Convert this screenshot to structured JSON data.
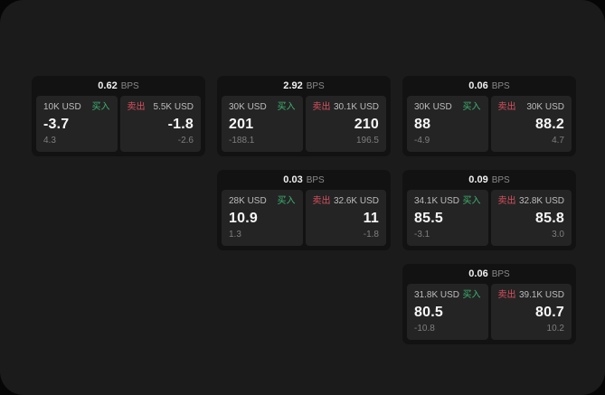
{
  "colors": {
    "outer_background": "#060606",
    "screen_background": "#1b1b1c",
    "card_background": "#121213",
    "tile_background": "#242425",
    "buy_green": "#3cb46e",
    "sell_red": "#d8505c",
    "primary_text": "#f7f7f7",
    "muted_text": "#7e7e7e"
  },
  "labels": {
    "bps_unit": "BPS",
    "buy": "买入",
    "sell": "卖出"
  },
  "cards": [
    {
      "bps": "0.62",
      "buy": {
        "size": "10K USD",
        "price": "-3.7",
        "delta": "4.3"
      },
      "sell": {
        "size": "5.5K USD",
        "price": "-1.8",
        "delta": "-2.6"
      }
    },
    {
      "bps": "2.92",
      "buy": {
        "size": "30K USD",
        "price": "201",
        "delta": "-188.1"
      },
      "sell": {
        "size": "30.1K USD",
        "price": "210",
        "delta": "196.5"
      }
    },
    {
      "bps": "0.06",
      "buy": {
        "size": "30K USD",
        "price": "88",
        "delta": "-4.9"
      },
      "sell": {
        "size": "30K USD",
        "price": "88.2",
        "delta": "4.7"
      }
    },
    {
      "bps": "0.03",
      "buy": {
        "size": "28K USD",
        "price": "10.9",
        "delta": "1.3"
      },
      "sell": {
        "size": "32.6K USD",
        "price": "11",
        "delta": "-1.8"
      }
    },
    {
      "bps": "0.09",
      "buy": {
        "size": "34.1K USD",
        "price": "85.5",
        "delta": "-3.1"
      },
      "sell": {
        "size": "32.8K USD",
        "price": "85.8",
        "delta": "3.0"
      }
    },
    {
      "bps": "0.06",
      "buy": {
        "size": "31.8K USD",
        "price": "80.5",
        "delta": "-10.8"
      },
      "sell": {
        "size": "39.1K USD",
        "price": "80.7",
        "delta": "10.2"
      }
    }
  ]
}
